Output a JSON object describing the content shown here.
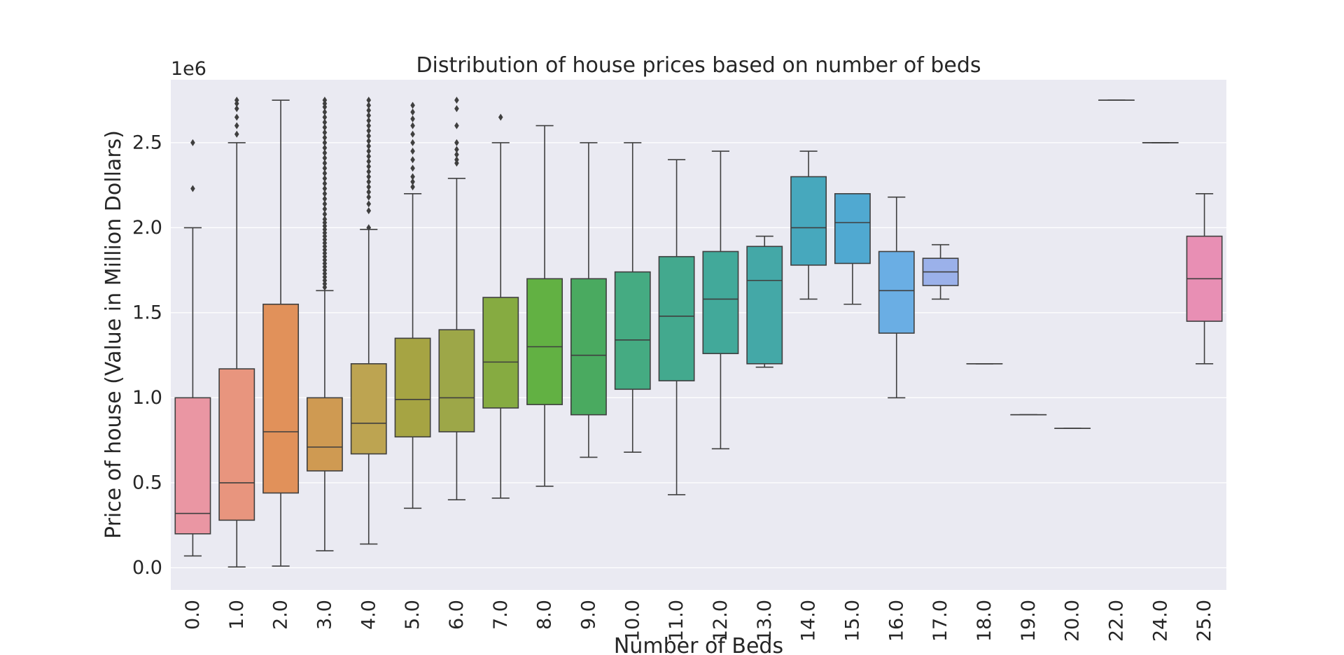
{
  "chart_data": {
    "type": "box",
    "title": "Distribution of house prices based on number of beds",
    "xlabel": "Number of Beds",
    "ylabel": "Price of house (Value in Million Dollars)",
    "y_offset_label": "1e6",
    "ylim": [
      -0.13,
      2.87
    ],
    "y_ticks": [
      {
        "value": 0.0,
        "label": "0.0"
      },
      {
        "value": 0.5,
        "label": "0.5"
      },
      {
        "value": 1.0,
        "label": "1.0"
      },
      {
        "value": 1.5,
        "label": "1.5"
      },
      {
        "value": 2.0,
        "label": "2.0"
      },
      {
        "value": 2.5,
        "label": "2.5"
      }
    ],
    "grid": true,
    "background_color": "#eaeaf2",
    "box_edge_color": "#3f3f3f",
    "categories": [
      {
        "label": "0.0",
        "color": "#ea96a3",
        "whislo": 0.07,
        "q1": 0.2,
        "med": 0.32,
        "q3": 1.0,
        "whishi": 2.0,
        "fliers": [
          2.23,
          2.5
        ]
      },
      {
        "label": "1.0",
        "color": "#e8957e",
        "whislo": 0.005,
        "q1": 0.28,
        "med": 0.5,
        "q3": 1.17,
        "whishi": 2.5,
        "fliers": [
          2.55,
          2.6,
          2.65,
          2.7,
          2.73,
          2.75
        ]
      },
      {
        "label": "2.0",
        "color": "#e1915a",
        "whislo": 0.01,
        "q1": 0.44,
        "med": 0.8,
        "q3": 1.55,
        "whishi": 2.75,
        "fliers": []
      },
      {
        "label": "3.0",
        "color": "#cf9a52",
        "whislo": 0.1,
        "q1": 0.57,
        "med": 0.71,
        "q3": 1.0,
        "whishi": 1.63,
        "fliers": [
          1.65,
          1.67,
          1.69,
          1.71,
          1.73,
          1.75,
          1.77,
          1.79,
          1.81,
          1.83,
          1.85,
          1.87,
          1.89,
          1.91,
          1.93,
          1.95,
          1.97,
          1.99,
          2.01,
          2.03,
          2.05,
          2.08,
          2.11,
          2.14,
          2.17,
          2.2,
          2.23,
          2.26,
          2.29,
          2.32,
          2.35,
          2.38,
          2.41,
          2.44,
          2.47,
          2.5,
          2.53,
          2.56,
          2.59,
          2.62,
          2.65,
          2.68,
          2.71,
          2.73,
          2.75
        ]
      },
      {
        "label": "4.0",
        "color": "#bda451",
        "whislo": 0.14,
        "q1": 0.67,
        "med": 0.85,
        "q3": 1.2,
        "whishi": 1.99,
        "fliers": [
          2.0,
          2.1,
          2.14,
          2.18,
          2.21,
          2.24,
          2.27,
          2.3,
          2.33,
          2.36,
          2.39,
          2.42,
          2.45,
          2.48,
          2.51,
          2.54,
          2.57,
          2.6,
          2.63,
          2.66,
          2.69,
          2.72,
          2.75
        ]
      },
      {
        "label": "5.0",
        "color": "#a6a443",
        "whislo": 0.35,
        "q1": 0.77,
        "med": 0.99,
        "q3": 1.35,
        "whishi": 2.2,
        "fliers": [
          2.24,
          2.27,
          2.3,
          2.35,
          2.4,
          2.45,
          2.5,
          2.55,
          2.6,
          2.64,
          2.68,
          2.72
        ]
      },
      {
        "label": "6.0",
        "color": "#9da748",
        "whislo": 0.4,
        "q1": 0.8,
        "med": 1.0,
        "q3": 1.4,
        "whishi": 2.29,
        "fliers": [
          2.38,
          2.4,
          2.43,
          2.46,
          2.5,
          2.6,
          2.7,
          2.75
        ]
      },
      {
        "label": "7.0",
        "color": "#86ab41",
        "whislo": 0.41,
        "q1": 0.94,
        "med": 1.21,
        "q3": 1.59,
        "whishi": 2.5,
        "fliers": [
          2.65
        ]
      },
      {
        "label": "8.0",
        "color": "#62b143",
        "whislo": 0.48,
        "q1": 0.96,
        "med": 1.3,
        "q3": 1.7,
        "whishi": 2.6,
        "fliers": []
      },
      {
        "label": "9.0",
        "color": "#4aaa60",
        "whislo": 0.65,
        "q1": 0.9,
        "med": 1.25,
        "q3": 1.7,
        "whishi": 2.5,
        "fliers": []
      },
      {
        "label": "10.0",
        "color": "#45ab82",
        "whislo": 0.68,
        "q1": 1.05,
        "med": 1.34,
        "q3": 1.74,
        "whishi": 2.5,
        "fliers": []
      },
      {
        "label": "11.0",
        "color": "#43a98e",
        "whislo": 0.43,
        "q1": 1.1,
        "med": 1.48,
        "q3": 1.83,
        "whishi": 2.4,
        "fliers": []
      },
      {
        "label": "12.0",
        "color": "#42a99a",
        "whislo": 0.7,
        "q1": 1.26,
        "med": 1.58,
        "q3": 1.86,
        "whishi": 2.45,
        "fliers": []
      },
      {
        "label": "13.0",
        "color": "#44a8a7",
        "whislo": 1.18,
        "q1": 1.2,
        "med": 1.69,
        "q3": 1.89,
        "whishi": 1.95,
        "fliers": []
      },
      {
        "label": "14.0",
        "color": "#47a8bd",
        "whislo": 1.58,
        "q1": 1.78,
        "med": 2.0,
        "q3": 2.3,
        "whishi": 2.45,
        "fliers": []
      },
      {
        "label": "15.0",
        "color": "#50a9d1",
        "whislo": 1.55,
        "q1": 1.79,
        "med": 2.03,
        "q3": 2.2,
        "whishi": 2.2,
        "fliers": []
      },
      {
        "label": "16.0",
        "color": "#6aaee4",
        "whislo": 1.0,
        "q1": 1.38,
        "med": 1.63,
        "q3": 1.86,
        "whishi": 2.18,
        "fliers": []
      },
      {
        "label": "17.0",
        "color": "#9bb1ea",
        "whislo": 1.58,
        "q1": 1.66,
        "med": 1.74,
        "q3": 1.82,
        "whishi": 1.9,
        "fliers": []
      },
      {
        "label": "18.0",
        "color": "#b8a9e8",
        "whislo": 1.2,
        "q1": 1.2,
        "med": 1.2,
        "q3": 1.2,
        "whishi": 1.2,
        "fliers": []
      },
      {
        "label": "19.0",
        "color": "#d09ee3",
        "whislo": 0.9,
        "q1": 0.9,
        "med": 0.9,
        "q3": 0.9,
        "whishi": 0.9,
        "fliers": []
      },
      {
        "label": "20.0",
        "color": "#e28fd6",
        "whislo": 0.82,
        "q1": 0.82,
        "med": 0.82,
        "q3": 0.82,
        "whishi": 0.82,
        "fliers": []
      },
      {
        "label": "22.0",
        "color": "#e590c6",
        "whislo": 2.75,
        "q1": 2.75,
        "med": 2.75,
        "q3": 2.75,
        "whishi": 2.75,
        "fliers": []
      },
      {
        "label": "24.0",
        "color": "#e891bb",
        "whislo": 2.5,
        "q1": 2.5,
        "med": 2.5,
        "q3": 2.5,
        "whishi": 2.5,
        "fliers": []
      },
      {
        "label": "25.0",
        "color": "#e88fb4",
        "whislo": 1.2,
        "q1": 1.45,
        "med": 1.7,
        "q3": 1.95,
        "whishi": 2.2,
        "fliers": []
      }
    ]
  }
}
